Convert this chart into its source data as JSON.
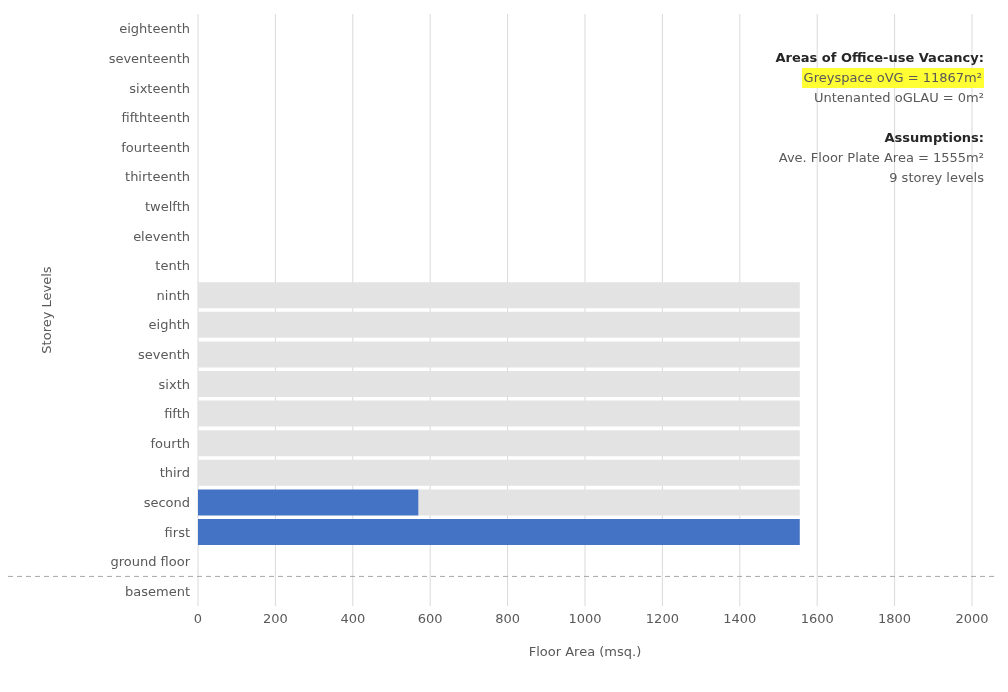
{
  "chart_data": {
    "type": "bar",
    "orientation": "horizontal",
    "stacked": true,
    "xlabel": "Floor Area (msq.)",
    "ylabel": "Storey Levels",
    "categories": [
      "eighteenth",
      "seventeenth",
      "sixteenth",
      "fifthteenth",
      "fourteenth",
      "thirteenth",
      "twelfth",
      "eleventh",
      "tenth",
      "ninth",
      "eighth",
      "seventh",
      "sixth",
      "fifth",
      "fourth",
      "third",
      "second",
      "first",
      "ground floor",
      "basement"
    ],
    "series": [
      {
        "color": "#4472c4",
        "values": [
          null,
          null,
          null,
          null,
          null,
          null,
          null,
          null,
          null,
          null,
          null,
          null,
          null,
          null,
          null,
          null,
          570,
          1555,
          null,
          null
        ]
      },
      {
        "color": "#e3e3e3",
        "values": [
          null,
          null,
          null,
          null,
          null,
          null,
          null,
          null,
          null,
          1555,
          1555,
          1555,
          1555,
          1555,
          1555,
          1555,
          985,
          null,
          null,
          null
        ]
      }
    ],
    "xlim": [
      0,
      2000
    ],
    "xticks": [
      0,
      200,
      400,
      600,
      800,
      1000,
      1200,
      1400,
      1600,
      1800,
      2000
    ],
    "grid": "x",
    "legend": false,
    "ref_lines": [
      {
        "axis": "y",
        "value": "basement",
        "color": "#a6a6a6",
        "line_style": "dashed"
      }
    ],
    "annotations": [
      "Areas of Office-use Vacancy:",
      "Greyspace oVG = 11867m²",
      "Untenanted oGLAU = 0m²",
      "Assumptions:",
      "Ave. Floor Plate Area = 1555m²",
      "9 storey levels"
    ]
  }
}
